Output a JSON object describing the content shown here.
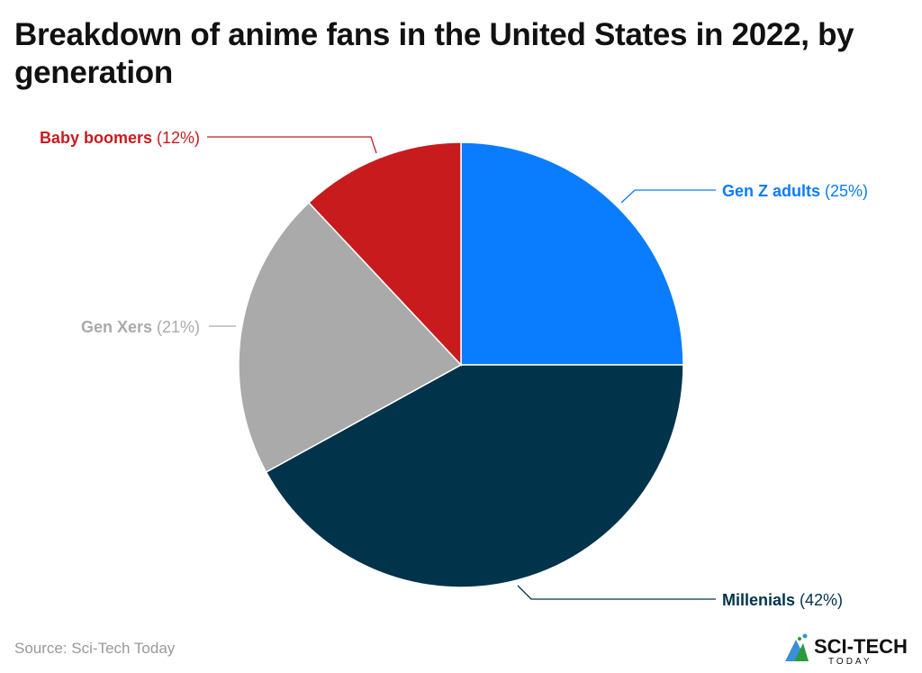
{
  "title": "Breakdown of anime fans in the United States in 2022, by generation",
  "source": "Source: Sci-Tech Today",
  "logo": {
    "text": "SCI-TECH",
    "subtext": "TODAY"
  },
  "chart_data": {
    "type": "pie",
    "title": "Breakdown of anime fans in the United States in 2022, by generation",
    "start_angle": "12 o'clock",
    "direction": "clockwise",
    "slices": [
      {
        "name": "Gen Z adults",
        "value": 25,
        "label": "(25%)",
        "color": "#0a7cfe"
      },
      {
        "name": "Millenials",
        "value": 42,
        "label": "(42%)",
        "color": "#01334b"
      },
      {
        "name": "Gen Xers",
        "value": 21,
        "label": "(21%)",
        "color": "#aaaaaa"
      },
      {
        "name": "Baby boomers",
        "value": 12,
        "label": "(12%)",
        "color": "#c81b1e"
      }
    ]
  }
}
